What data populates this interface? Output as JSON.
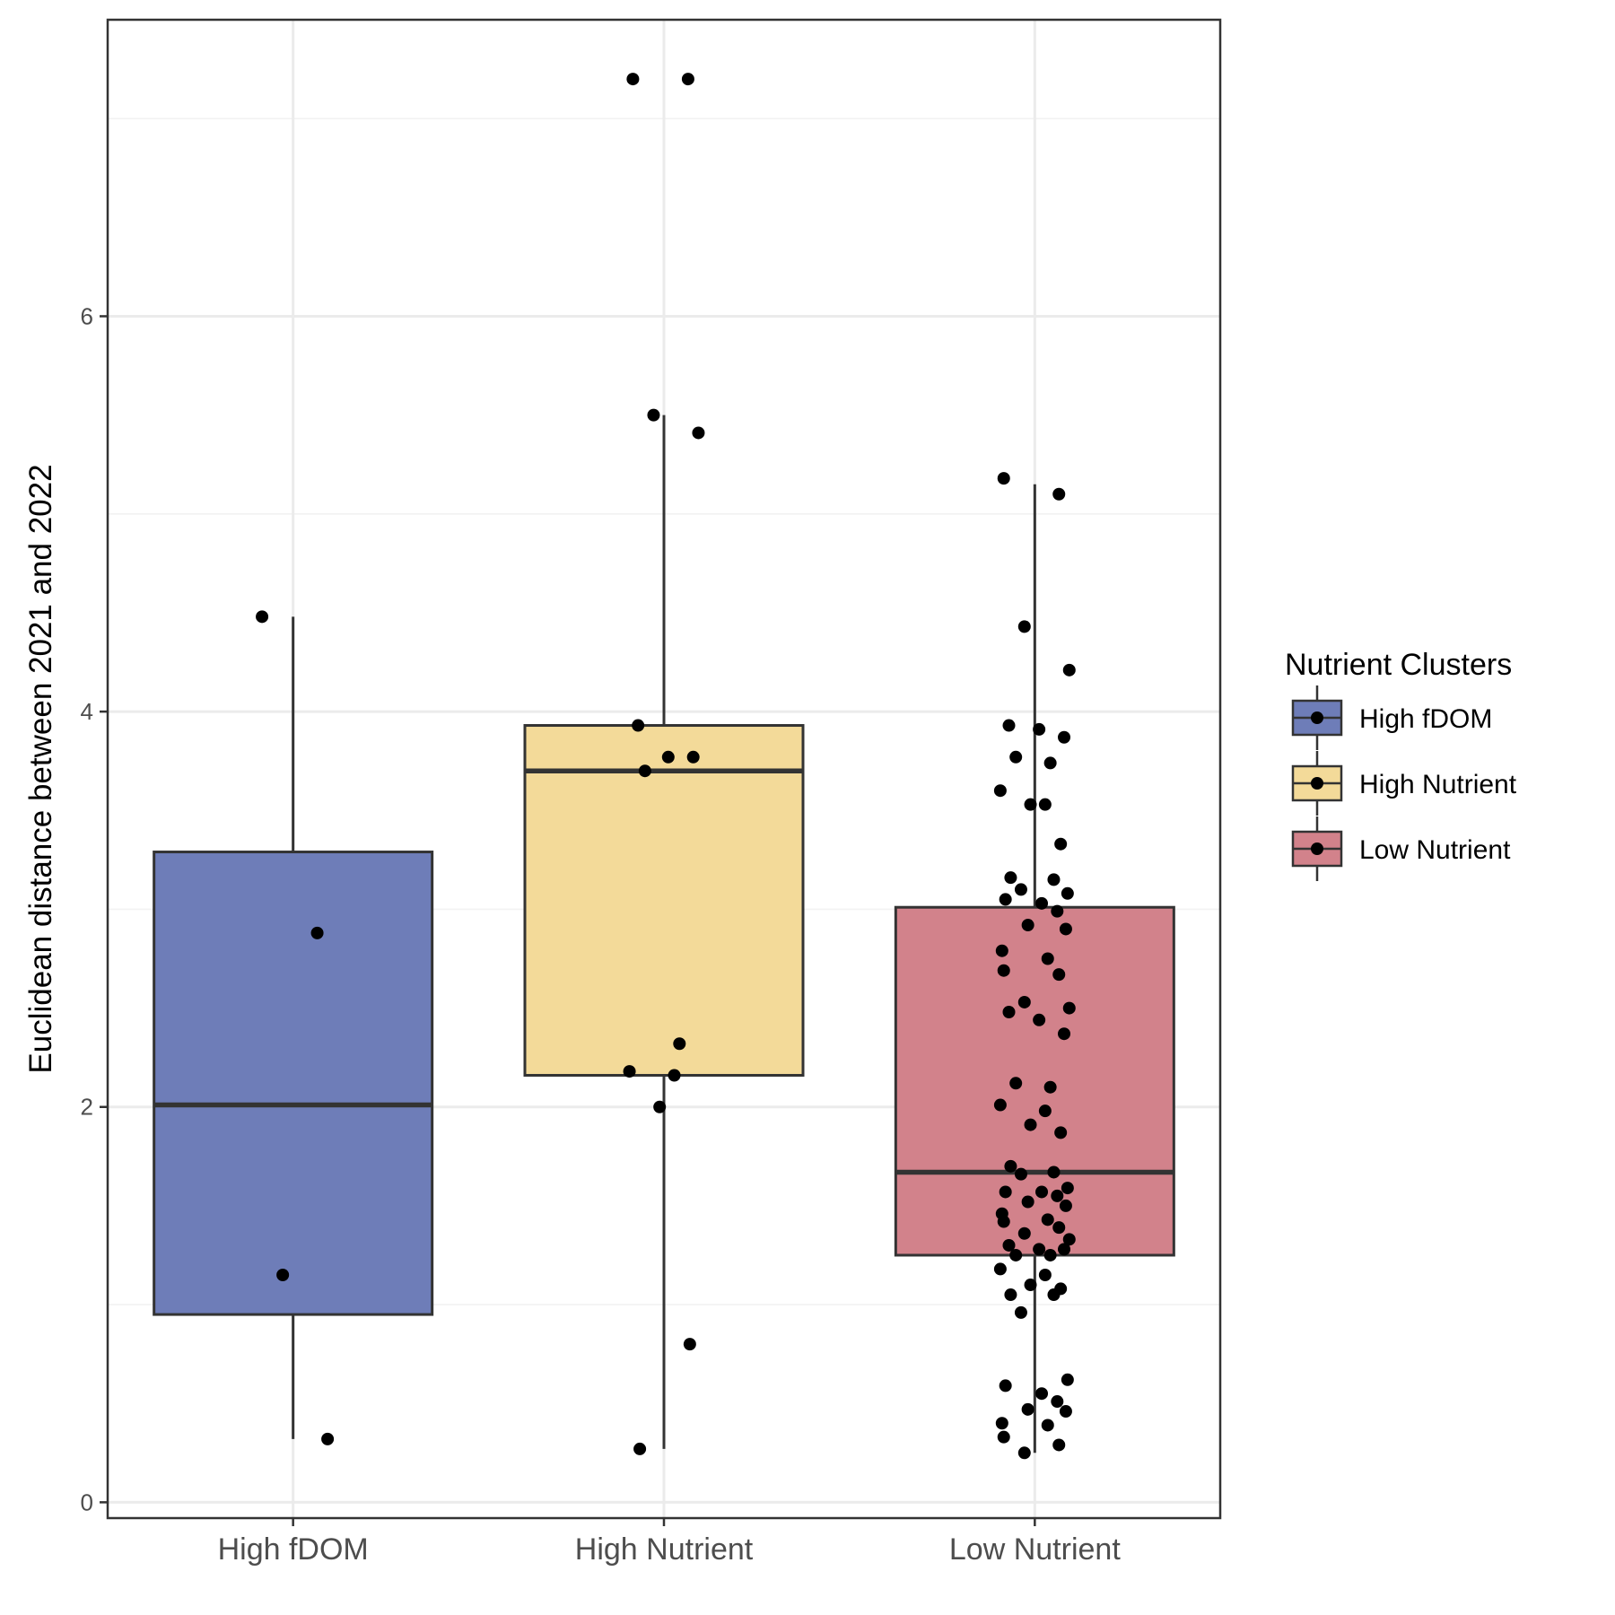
{
  "chart_data": {
    "type": "box",
    "title": "",
    "xlabel": "",
    "ylabel": "Euclidean distance between 2021 and 2022",
    "ylim": [
      -0.08,
      7.5
    ],
    "yticks": [
      0,
      2,
      4,
      6
    ],
    "grid": true,
    "legend_position": "right",
    "legend": {
      "title": "Nutrient Clusters",
      "entries": [
        "High fDOM",
        "High Nutrient",
        "Low Nutrient"
      ]
    },
    "categories": [
      "High fDOM",
      "High Nutrient",
      "Low Nutrient"
    ],
    "colors": [
      "#6e7db8",
      "#f3da99",
      "#d2828b"
    ],
    "boxes": [
      {
        "name": "High fDOM",
        "whisker_low": 0.32,
        "q1": 0.95,
        "median": 2.01,
        "q3": 3.29,
        "whisker_high": 4.48
      },
      {
        "name": "High Nutrient",
        "whisker_low": 0.27,
        "q1": 2.16,
        "median": 3.7,
        "q3": 3.93,
        "whisker_high": 5.5
      },
      {
        "name": "Low Nutrient",
        "whisker_low": 0.25,
        "q1": 1.25,
        "median": 1.67,
        "q3": 3.01,
        "whisker_high": 5.15
      }
    ],
    "points": [
      {
        "category": "High fDOM",
        "values": [
          4.48,
          2.88,
          1.15,
          0.32
        ]
      },
      {
        "category": "High Nutrient",
        "values": [
          7.2,
          7.2,
          5.5,
          5.41,
          3.93,
          3.77,
          3.77,
          3.7,
          2.32,
          2.18,
          2.16,
          2.0,
          0.8,
          0.27
        ]
      },
      {
        "category": "Low Nutrient",
        "values": [
          5.18,
          5.1,
          4.43,
          4.21,
          3.93,
          3.91,
          3.87,
          3.77,
          3.74,
          3.6,
          3.53,
          3.53,
          3.33,
          3.16,
          3.15,
          3.1,
          3.08,
          3.05,
          3.03,
          2.99,
          2.92,
          2.9,
          2.79,
          2.75,
          2.69,
          2.67,
          2.53,
          2.5,
          2.48,
          2.44,
          2.37,
          2.12,
          2.1,
          2.01,
          1.98,
          1.91,
          1.87,
          1.7,
          1.67,
          1.66,
          1.59,
          1.57,
          1.57,
          1.55,
          1.52,
          1.5,
          1.46,
          1.43,
          1.42,
          1.39,
          1.36,
          1.33,
          1.3,
          1.28,
          1.28,
          1.25,
          1.25,
          1.18,
          1.15,
          1.1,
          1.08,
          1.05,
          1.05,
          0.96,
          0.62,
          0.59,
          0.55,
          0.51,
          0.47,
          0.46,
          0.4,
          0.39,
          0.33,
          0.29,
          0.25
        ]
      }
    ]
  }
}
